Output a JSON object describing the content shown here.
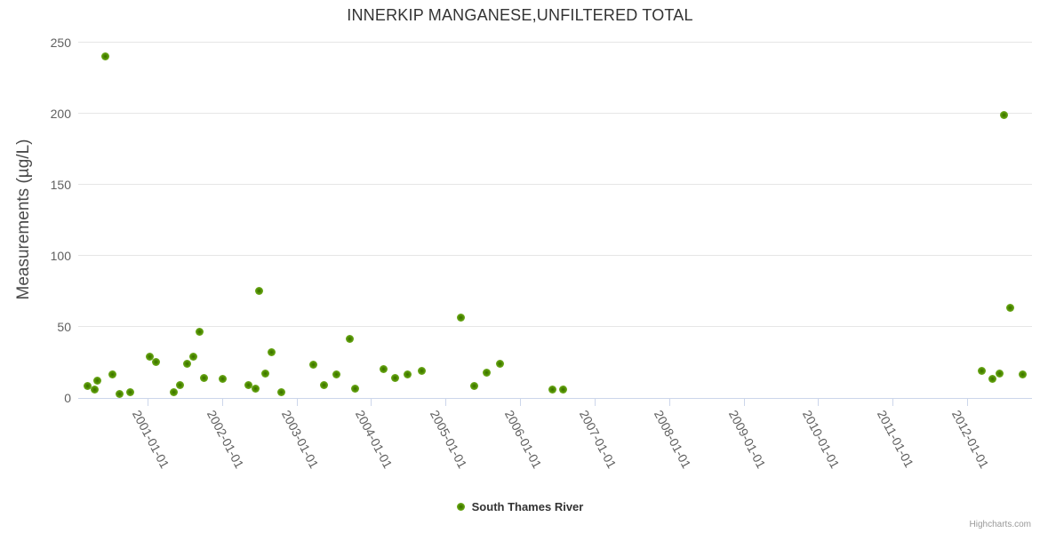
{
  "chart_data": {
    "type": "scatter",
    "title": "INNERKIP MANGANESE,UNFILTERED TOTAL",
    "xlabel": "",
    "ylabel": "Measurements (µg/L)",
    "ylim": [
      0,
      250
    ],
    "yticks": [
      0,
      50,
      100,
      150,
      200,
      250
    ],
    "xticks": [
      "2001-01-01",
      "2002-01-01",
      "2003-01-01",
      "2004-01-01",
      "2005-01-01",
      "2006-01-01",
      "2007-01-01",
      "2008-01-01",
      "2009-01-01",
      "2010-01-01",
      "2011-01-01",
      "2012-01-01"
    ],
    "x_range_years": [
      2000.07,
      2012.87
    ],
    "grid": true,
    "legend_position": "bottom-center",
    "series": [
      {
        "name": "South Thames River",
        "color": "#6da81e",
        "points": [
          {
            "date": "2000-03-14",
            "t": 2000.2,
            "value": 8
          },
          {
            "date": "2000-04-15",
            "t": 2000.29,
            "value": 5.5
          },
          {
            "date": "2000-05-01",
            "t": 2000.33,
            "value": 12
          },
          {
            "date": "2000-06-06",
            "t": 2000.43,
            "value": 240
          },
          {
            "date": "2000-07-12",
            "t": 2000.53,
            "value": 16
          },
          {
            "date": "2000-08-18",
            "t": 2000.63,
            "value": 2.5
          },
          {
            "date": "2000-10-08",
            "t": 2000.77,
            "value": 4
          },
          {
            "date": "2001-01-11",
            "t": 2001.03,
            "value": 29
          },
          {
            "date": "2001-02-10",
            "t": 2001.11,
            "value": 25
          },
          {
            "date": "2001-05-08",
            "t": 2001.35,
            "value": 3.5
          },
          {
            "date": "2001-06-06",
            "t": 2001.43,
            "value": 9
          },
          {
            "date": "2001-07-12",
            "t": 2001.53,
            "value": 24
          },
          {
            "date": "2001-08-14",
            "t": 2001.62,
            "value": 29
          },
          {
            "date": "2001-09-13",
            "t": 2001.7,
            "value": 46
          },
          {
            "date": "2001-10-05",
            "t": 2001.76,
            "value": 14
          },
          {
            "date": "2002-01-04",
            "t": 2002.01,
            "value": 13
          },
          {
            "date": "2002-05-08",
            "t": 2002.35,
            "value": 9
          },
          {
            "date": "2002-06-13",
            "t": 2002.45,
            "value": 6
          },
          {
            "date": "2002-07-02",
            "t": 2002.5,
            "value": 75
          },
          {
            "date": "2002-07-31",
            "t": 2002.58,
            "value": 17
          },
          {
            "date": "2002-09-02",
            "t": 2002.67,
            "value": 32
          },
          {
            "date": "2002-10-16",
            "t": 2002.79,
            "value": 4
          },
          {
            "date": "2003-03-21",
            "t": 2003.22,
            "value": 23
          },
          {
            "date": "2003-05-15",
            "t": 2003.37,
            "value": 9
          },
          {
            "date": "2003-07-12",
            "t": 2003.53,
            "value": 16.5
          },
          {
            "date": "2003-09-20",
            "t": 2003.72,
            "value": 41
          },
          {
            "date": "2003-10-12",
            "t": 2003.78,
            "value": 6.5
          },
          {
            "date": "2004-03-03",
            "t": 2004.17,
            "value": 20
          },
          {
            "date": "2004-04-26",
            "t": 2004.32,
            "value": 13.5
          },
          {
            "date": "2004-06-27",
            "t": 2004.49,
            "value": 16.5
          },
          {
            "date": "2004-09-05",
            "t": 2004.68,
            "value": 19
          },
          {
            "date": "2005-03-18",
            "t": 2005.21,
            "value": 56
          },
          {
            "date": "2005-05-19",
            "t": 2005.38,
            "value": 8
          },
          {
            "date": "2005-07-20",
            "t": 2005.55,
            "value": 17.5
          },
          {
            "date": "2005-09-24",
            "t": 2005.73,
            "value": 23.5
          },
          {
            "date": "2006-06-06",
            "t": 2006.43,
            "value": 5.5
          },
          {
            "date": "2006-07-31",
            "t": 2006.58,
            "value": 5.5
          },
          {
            "date": "2012-03-13",
            "t": 2012.2,
            "value": 18.5
          },
          {
            "date": "2012-05-04",
            "t": 2012.34,
            "value": 13
          },
          {
            "date": "2012-06-10",
            "t": 2012.44,
            "value": 17
          },
          {
            "date": "2012-07-02",
            "t": 2012.5,
            "value": 199
          },
          {
            "date": "2012-07-31",
            "t": 2012.58,
            "value": 63
          },
          {
            "date": "2012-09-27",
            "t": 2012.74,
            "value": 16
          }
        ]
      }
    ]
  },
  "legend": {
    "items": [
      {
        "label": "South Thames River",
        "color": "#6da81e"
      }
    ]
  },
  "credits": {
    "label": "Highcharts.com"
  },
  "colors": {
    "point_outer": "#86bf2e",
    "point_core": "#3a6b00",
    "grid_line": "#e6e6e6",
    "axis_line": "#ccd6eb",
    "title_text": "#333333",
    "axis_label_text": "#606060",
    "background": "#ffffff"
  }
}
